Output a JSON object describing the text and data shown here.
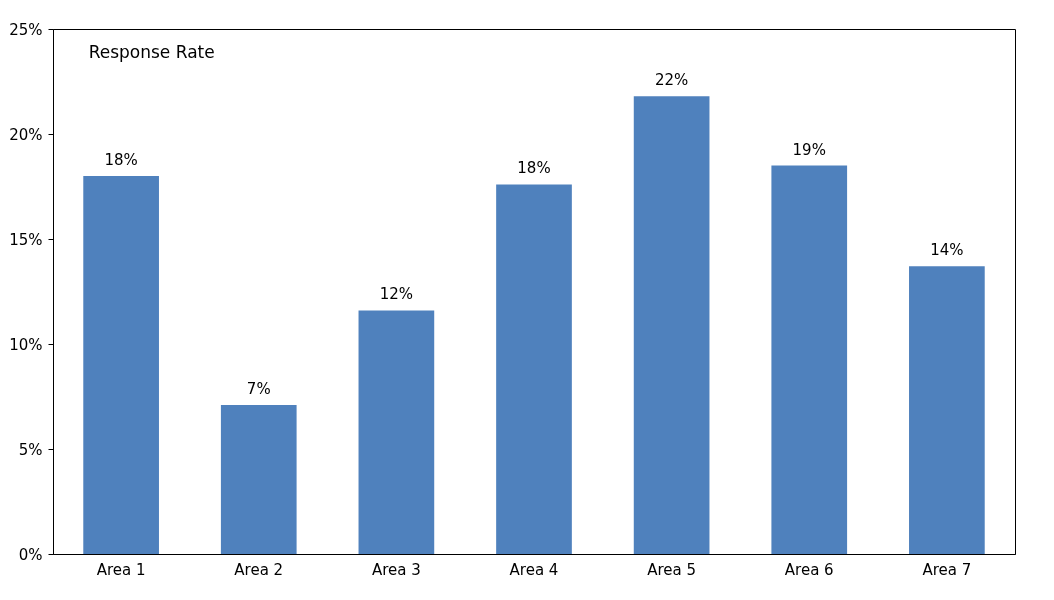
{
  "chart_data": {
    "type": "bar",
    "title": "Response Rate",
    "categories": [
      "Area 1",
      "Area 2",
      "Area 3",
      "Area 4",
      "Area 5",
      "Area 6",
      "Area 7"
    ],
    "values": [
      18,
      7.1,
      11.6,
      17.6,
      21.8,
      18.5,
      13.7
    ],
    "value_labels": [
      "18%",
      "7%",
      "12%",
      "18%",
      "22%",
      "19%",
      "14%"
    ],
    "color": "#4f81bd",
    "ylim": [
      0,
      25
    ],
    "yticks": [
      {
        "value": 0,
        "label": "0%"
      },
      {
        "value": 5,
        "label": "5%"
      },
      {
        "value": 10,
        "label": "10%"
      },
      {
        "value": 15,
        "label": "15%"
      },
      {
        "value": 20,
        "label": "20%"
      },
      {
        "value": 25,
        "label": "25%"
      }
    ],
    "grid": false
  }
}
